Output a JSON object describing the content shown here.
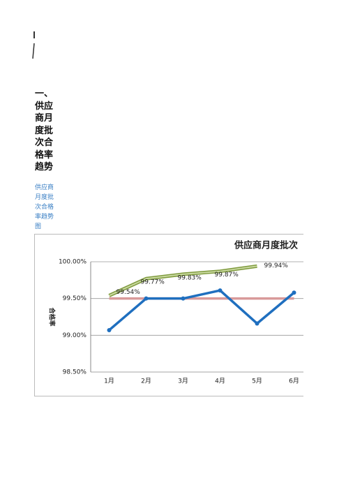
{
  "heading": "一、供应商月度批次合格率趋势",
  "caption": "供应商月度批次合格率趋势图",
  "chart_data": {
    "type": "line",
    "title": "供应商月度批次",
    "y_label": "合格率",
    "categories": [
      "1月",
      "2月",
      "3月",
      "4月",
      "5月",
      "6月"
    ],
    "series": [
      {
        "color": "#c9d9a0",
        "values": [
          99.54,
          99.77,
          99.83,
          99.87,
          99.94,
          null
        ],
        "value_labels": [
          "99.54%",
          "99.77%",
          "99.83%",
          "99.87%",
          "99.94%",
          null
        ]
      },
      {
        "color": "#d99a9a",
        "values": [
          99.5,
          99.5,
          99.5,
          99.5,
          99.5,
          99.5
        ]
      },
      {
        "color": "#1f6fbf",
        "values": [
          99.07,
          99.5,
          99.5,
          99.61,
          99.16,
          99.58
        ]
      }
    ],
    "ylim": [
      98.5,
      100
    ],
    "yticks": [
      {
        "value": 98.5,
        "label": "98.50%"
      },
      {
        "value": 99,
        "label": "99.00%"
      },
      {
        "value": 99.5,
        "label": "99.50%"
      },
      {
        "value": 100,
        "label": "100.00%"
      }
    ],
    "grid": true
  }
}
